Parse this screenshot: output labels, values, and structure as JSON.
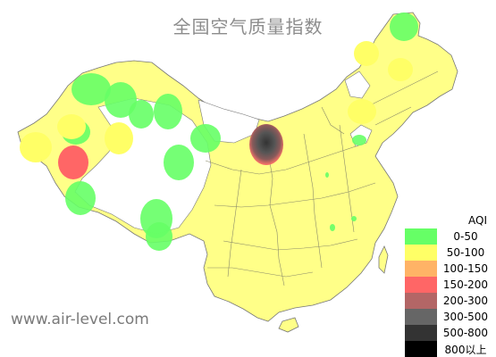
{
  "title": "全国空气质量指数",
  "watermark": "www.air-level.com",
  "legend": {
    "title": "AQI",
    "items": [
      {
        "label": "0-50",
        "color": "#66ff66"
      },
      {
        "label": "50-100",
        "color": "#ffff66"
      },
      {
        "label": "100-150",
        "color": "#ffb366"
      },
      {
        "label": "150-200",
        "color": "#ff6666"
      },
      {
        "label": "200-300",
        "color": "#b36666"
      },
      {
        "label": "300-500",
        "color": "#666666"
      },
      {
        "label": "500-800",
        "color": "#333333"
      },
      {
        "label": "800以上",
        "color": "#000000"
      }
    ]
  }
}
